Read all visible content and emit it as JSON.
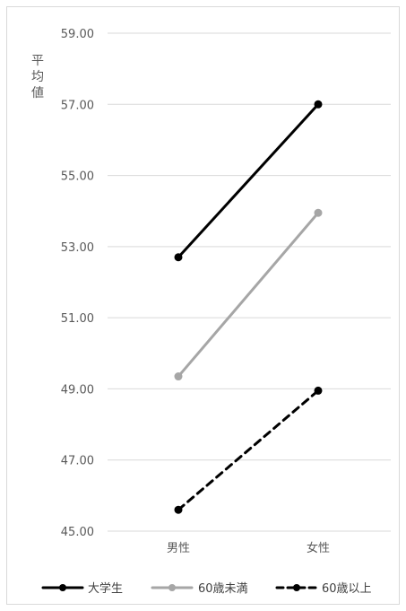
{
  "chart_data": {
    "type": "line",
    "ylabel": "平均値",
    "ylim": [
      45,
      59
    ],
    "yticks": [
      "45.00",
      "47.00",
      "49.00",
      "51.00",
      "53.00",
      "55.00",
      "57.00",
      "59.00"
    ],
    "categories": [
      "男性",
      "女性"
    ],
    "grid": true,
    "legend_position": "bottom",
    "series": [
      {
        "name": "大学生",
        "values": [
          52.7,
          57.0
        ],
        "color": "#000000",
        "dash": "solid"
      },
      {
        "name": "60歳未満",
        "values": [
          49.35,
          53.95
        ],
        "color": "#a6a6a6",
        "dash": "solid"
      },
      {
        "name": "60歳以上",
        "values": [
          45.6,
          48.95
        ],
        "color": "#000000",
        "dash": "dashed"
      }
    ]
  }
}
